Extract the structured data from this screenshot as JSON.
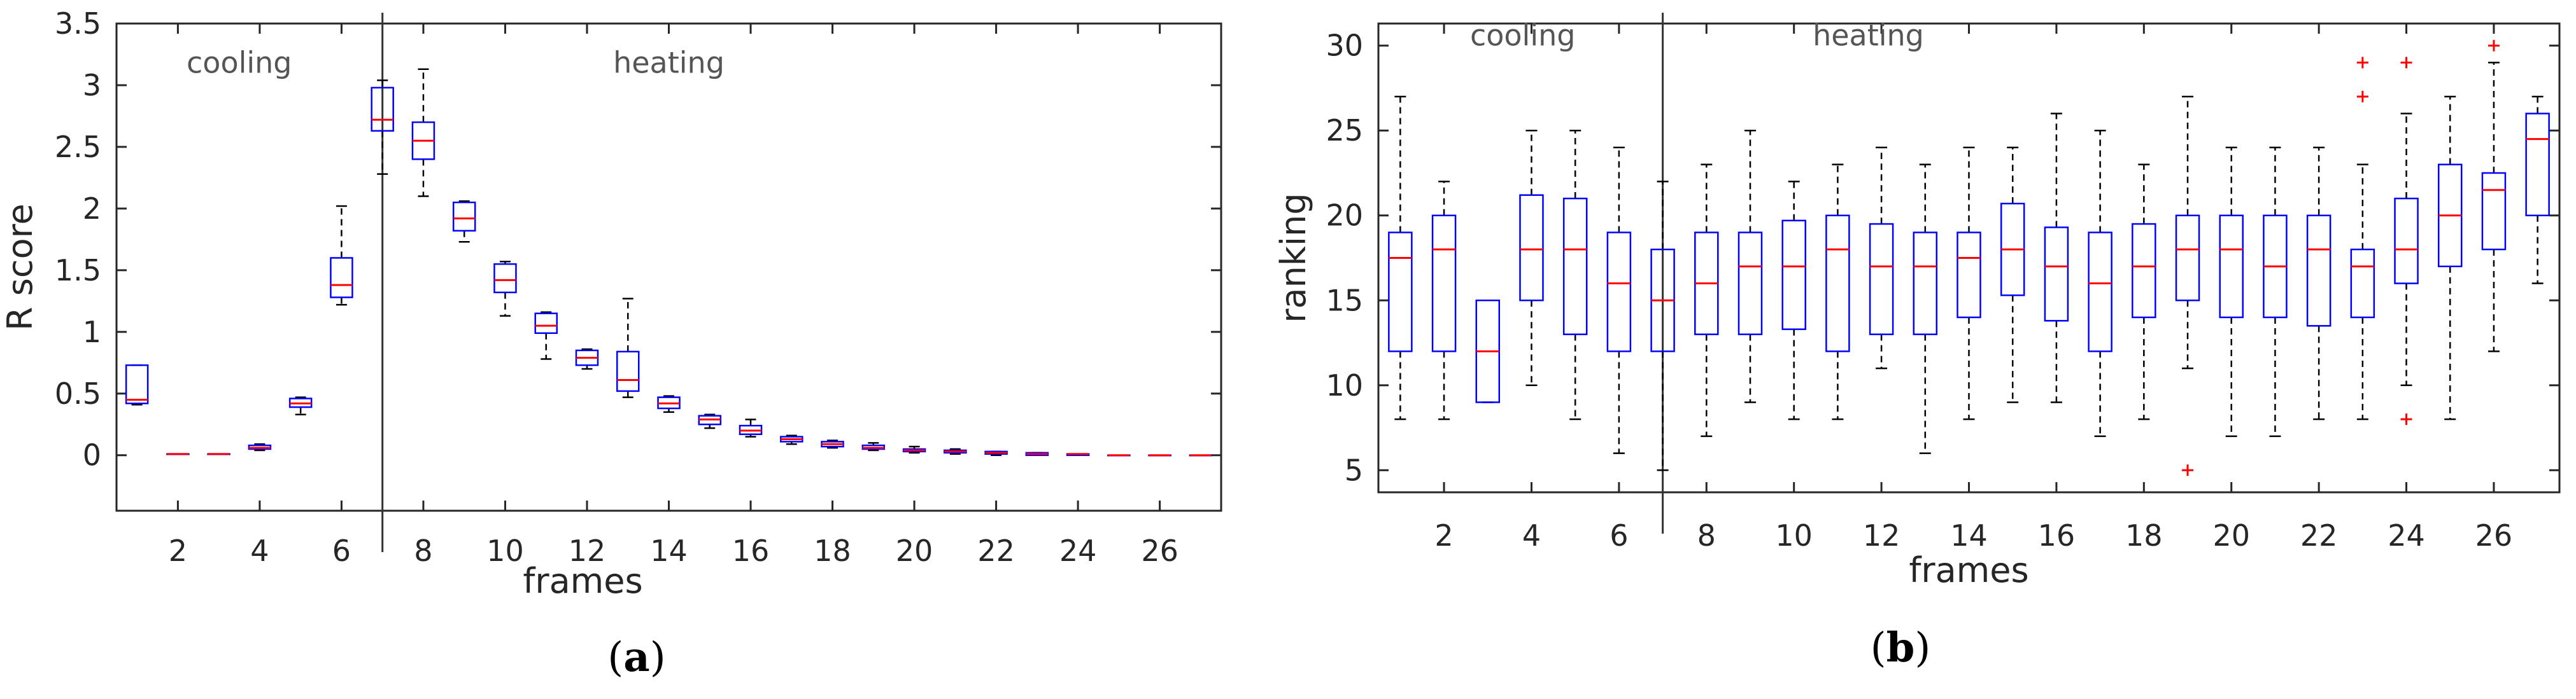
{
  "colors": {
    "box": "#0000ff",
    "median": "#ff0000",
    "whisker": "#000000",
    "outlier": "#ff0000",
    "axis": "#262626"
  },
  "chart_data": [
    {
      "panel": "(a)",
      "caption_letter": "a",
      "type": "boxplot",
      "xlabel": "frames",
      "ylabel": "R score",
      "xlim": [
        0.5,
        27.5
      ],
      "ylim": [
        -0.45,
        3.5
      ],
      "xticks": [
        2,
        4,
        6,
        8,
        10,
        12,
        14,
        16,
        18,
        20,
        22,
        24,
        26
      ],
      "xtick_labels": [
        "2",
        "4",
        "6",
        "8",
        "10",
        "12",
        "14",
        "16",
        "18",
        "20",
        "22",
        "24",
        "26"
      ],
      "yticks": [
        0,
        0.5,
        1,
        1.5,
        2,
        2.5,
        3,
        3.5
      ],
      "ytick_labels": [
        "0",
        "0.5",
        "1",
        "1.5",
        "2",
        "2.5",
        "3",
        "3.5"
      ],
      "divider_x": 7,
      "regions": [
        {
          "label": "cooling",
          "x": 3.5,
          "y": 3.1
        },
        {
          "label": "heating",
          "x": 14.0,
          "y": 3.1
        }
      ],
      "boxes": [
        {
          "frame": 1,
          "min": 0.41,
          "q1": 0.42,
          "median": 0.45,
          "q3": 0.73,
          "max": 0.73
        },
        {
          "frame": 2,
          "min": 0.01,
          "q1": 0.01,
          "median": 0.01,
          "q3": 0.01,
          "max": 0.01
        },
        {
          "frame": 3,
          "min": 0.01,
          "q1": 0.01,
          "median": 0.01,
          "q3": 0.01,
          "max": 0.01
        },
        {
          "frame": 4,
          "min": 0.04,
          "q1": 0.05,
          "median": 0.06,
          "q3": 0.08,
          "max": 0.09
        },
        {
          "frame": 5,
          "min": 0.33,
          "q1": 0.39,
          "median": 0.42,
          "q3": 0.46,
          "max": 0.47
        },
        {
          "frame": 6,
          "min": 1.22,
          "q1": 1.28,
          "median": 1.38,
          "q3": 1.6,
          "max": 2.02
        },
        {
          "frame": 7,
          "min": 2.28,
          "q1": 2.63,
          "median": 2.72,
          "q3": 2.98,
          "max": 3.04
        },
        {
          "frame": 8,
          "min": 2.1,
          "q1": 2.4,
          "median": 2.55,
          "q3": 2.7,
          "max": 3.13
        },
        {
          "frame": 9,
          "min": 1.73,
          "q1": 1.82,
          "median": 1.92,
          "q3": 2.05,
          "max": 2.06
        },
        {
          "frame": 10,
          "min": 1.13,
          "q1": 1.32,
          "median": 1.42,
          "q3": 1.55,
          "max": 1.57
        },
        {
          "frame": 11,
          "min": 0.78,
          "q1": 0.99,
          "median": 1.05,
          "q3": 1.15,
          "max": 1.16
        },
        {
          "frame": 12,
          "min": 0.7,
          "q1": 0.73,
          "median": 0.79,
          "q3": 0.85,
          "max": 0.86
        },
        {
          "frame": 13,
          "min": 0.47,
          "q1": 0.52,
          "median": 0.61,
          "q3": 0.84,
          "max": 1.27
        },
        {
          "frame": 14,
          "min": 0.35,
          "q1": 0.38,
          "median": 0.42,
          "q3": 0.47,
          "max": 0.48
        },
        {
          "frame": 15,
          "min": 0.22,
          "q1": 0.25,
          "median": 0.29,
          "q3": 0.32,
          "max": 0.33
        },
        {
          "frame": 16,
          "min": 0.15,
          "q1": 0.17,
          "median": 0.2,
          "q3": 0.24,
          "max": 0.29
        },
        {
          "frame": 17,
          "min": 0.09,
          "q1": 0.11,
          "median": 0.13,
          "q3": 0.15,
          "max": 0.16
        },
        {
          "frame": 18,
          "min": 0.06,
          "q1": 0.07,
          "median": 0.09,
          "q3": 0.11,
          "max": 0.12
        },
        {
          "frame": 19,
          "min": 0.04,
          "q1": 0.05,
          "median": 0.06,
          "q3": 0.08,
          "max": 0.1
        },
        {
          "frame": 20,
          "min": 0.02,
          "q1": 0.03,
          "median": 0.04,
          "q3": 0.05,
          "max": 0.07
        },
        {
          "frame": 21,
          "min": 0.01,
          "q1": 0.02,
          "median": 0.03,
          "q3": 0.04,
          "max": 0.05
        },
        {
          "frame": 22,
          "min": 0.0,
          "q1": 0.01,
          "median": 0.02,
          "q3": 0.03,
          "max": 0.03
        },
        {
          "frame": 23,
          "min": 0.0,
          "q1": 0.0,
          "median": 0.01,
          "q3": 0.02,
          "max": 0.02
        },
        {
          "frame": 24,
          "min": 0.0,
          "q1": 0.0,
          "median": 0.01,
          "q3": 0.01,
          "max": 0.01
        },
        {
          "frame": 25,
          "min": 0.0,
          "q1": 0.0,
          "median": 0.0,
          "q3": 0.0,
          "max": 0.0
        },
        {
          "frame": 26,
          "min": 0.0,
          "q1": 0.0,
          "median": 0.0,
          "q3": 0.0,
          "max": 0.0
        },
        {
          "frame": 27,
          "min": 0.0,
          "q1": 0.0,
          "median": 0.0,
          "q3": 0.0,
          "max": 0.0
        }
      ],
      "outliers": []
    },
    {
      "panel": "(b)",
      "caption_letter": "b",
      "type": "boxplot",
      "xlabel": "frames",
      "ylabel": "ranking",
      "xlim": [
        0.5,
        27.5
      ],
      "ylim": [
        3.7,
        31.3
      ],
      "xticks": [
        2,
        4,
        6,
        8,
        10,
        12,
        14,
        16,
        18,
        20,
        22,
        24,
        26
      ],
      "xtick_labels": [
        "2",
        "4",
        "6",
        "8",
        "10",
        "12",
        "14",
        "16",
        "18",
        "20",
        "22",
        "24",
        "26"
      ],
      "yticks": [
        5,
        10,
        15,
        20,
        25,
        30
      ],
      "ytick_labels": [
        "5",
        "10",
        "15",
        "20",
        "25",
        "30"
      ],
      "divider_x": 7,
      "regions": [
        {
          "label": "cooling",
          "x": 3.8,
          "y": 30.0
        },
        {
          "label": "heating",
          "x": 11.7,
          "y": 30.0
        }
      ],
      "boxes": [
        {
          "frame": 1,
          "min": 8,
          "q1": 12,
          "median": 17.5,
          "q3": 19,
          "max": 27
        },
        {
          "frame": 2,
          "min": 8,
          "q1": 12,
          "median": 18,
          "q3": 20,
          "max": 22
        },
        {
          "frame": 3,
          "min": 9,
          "q1": 9,
          "median": 12,
          "q3": 15,
          "max": 15
        },
        {
          "frame": 4,
          "min": 10,
          "q1": 15,
          "median": 18,
          "q3": 21.2,
          "max": 25
        },
        {
          "frame": 5,
          "min": 8,
          "q1": 13,
          "median": 18,
          "q3": 21,
          "max": 25
        },
        {
          "frame": 6,
          "min": 6,
          "q1": 12,
          "median": 16,
          "q3": 19,
          "max": 24
        },
        {
          "frame": 7,
          "min": 5,
          "q1": 12,
          "median": 15,
          "q3": 18,
          "max": 22
        },
        {
          "frame": 8,
          "min": 7,
          "q1": 13,
          "median": 16,
          "q3": 19,
          "max": 23
        },
        {
          "frame": 9,
          "min": 9,
          "q1": 13,
          "median": 17,
          "q3": 19,
          "max": 25
        },
        {
          "frame": 10,
          "min": 8,
          "q1": 13.3,
          "median": 17,
          "q3": 19.7,
          "max": 22
        },
        {
          "frame": 11,
          "min": 8,
          "q1": 12,
          "median": 18,
          "q3": 20,
          "max": 23
        },
        {
          "frame": 12,
          "min": 11,
          "q1": 13,
          "median": 17,
          "q3": 19.5,
          "max": 24
        },
        {
          "frame": 13,
          "min": 6,
          "q1": 13,
          "median": 17,
          "q3": 19,
          "max": 23
        },
        {
          "frame": 14,
          "min": 8,
          "q1": 14,
          "median": 17.5,
          "q3": 19,
          "max": 24
        },
        {
          "frame": 15,
          "min": 9,
          "q1": 15.3,
          "median": 18,
          "q3": 20.7,
          "max": 24
        },
        {
          "frame": 16,
          "min": 9,
          "q1": 13.8,
          "median": 17,
          "q3": 19.3,
          "max": 26
        },
        {
          "frame": 17,
          "min": 7,
          "q1": 12,
          "median": 16,
          "q3": 19,
          "max": 25
        },
        {
          "frame": 18,
          "min": 8,
          "q1": 14,
          "median": 17,
          "q3": 19.5,
          "max": 23
        },
        {
          "frame": 19,
          "min": 11,
          "q1": 15,
          "median": 18,
          "q3": 20,
          "max": 27
        },
        {
          "frame": 20,
          "min": 7,
          "q1": 14,
          "median": 18,
          "q3": 20,
          "max": 24
        },
        {
          "frame": 21,
          "min": 7,
          "q1": 14,
          "median": 17,
          "q3": 20,
          "max": 24
        },
        {
          "frame": 22,
          "min": 8,
          "q1": 13.5,
          "median": 18,
          "q3": 20,
          "max": 24
        },
        {
          "frame": 23,
          "min": 8,
          "q1": 14,
          "median": 17,
          "q3": 18,
          "max": 23
        },
        {
          "frame": 24,
          "min": 10,
          "q1": 16,
          "median": 18,
          "q3": 21,
          "max": 26
        },
        {
          "frame": 25,
          "min": 8,
          "q1": 17,
          "median": 20,
          "q3": 23,
          "max": 27
        },
        {
          "frame": 26,
          "min": 12,
          "q1": 18,
          "median": 21.5,
          "q3": 22.5,
          "max": 29
        },
        {
          "frame": 27,
          "min": 16,
          "q1": 20,
          "median": 24.5,
          "q3": 26,
          "max": 27
        }
      ],
      "outliers": [
        {
          "frame": 19,
          "value": 5
        },
        {
          "frame": 23,
          "value": 27
        },
        {
          "frame": 23,
          "value": 29
        },
        {
          "frame": 24,
          "value": 8
        },
        {
          "frame": 24,
          "value": 29
        },
        {
          "frame": 26,
          "value": 30
        }
      ]
    }
  ]
}
